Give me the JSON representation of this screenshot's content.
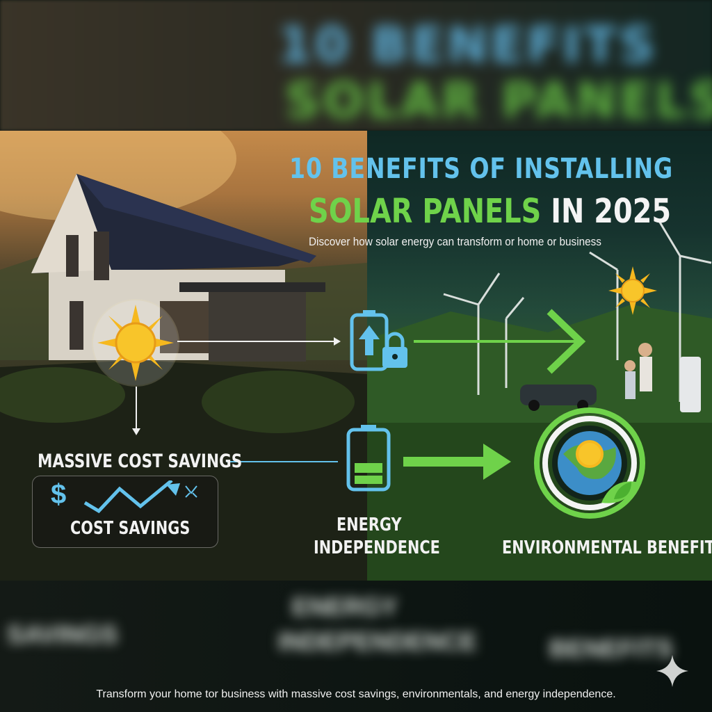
{
  "header": {
    "title_line1": "10 BENEFITS OF INSTALLING",
    "title_line2_highlight": "SOLAR PANELS",
    "title_line2_rest": "IN 2025",
    "subtitle": "Discover how solar energy can transform or home or business"
  },
  "benefits": [
    {
      "title": "MASSIVE COST SAVINGS",
      "card_label": "COST SAVINGS",
      "icon": "dollar-trend-icon"
    },
    {
      "title_line1": "ENERGY",
      "title_line2": "INDEPENDENCE",
      "icon": "battery-icon"
    },
    {
      "title": "ENVIRONMENTAL BENEFITS",
      "icon": "globe-leaf-icon"
    }
  ],
  "footer": {
    "text": "Transform your home tor business with massive cost savings, environmentals, and energy independence."
  },
  "colors": {
    "accent_blue": "#63c2ec",
    "accent_green": "#6fd24a",
    "sun": "#f6b81e"
  }
}
